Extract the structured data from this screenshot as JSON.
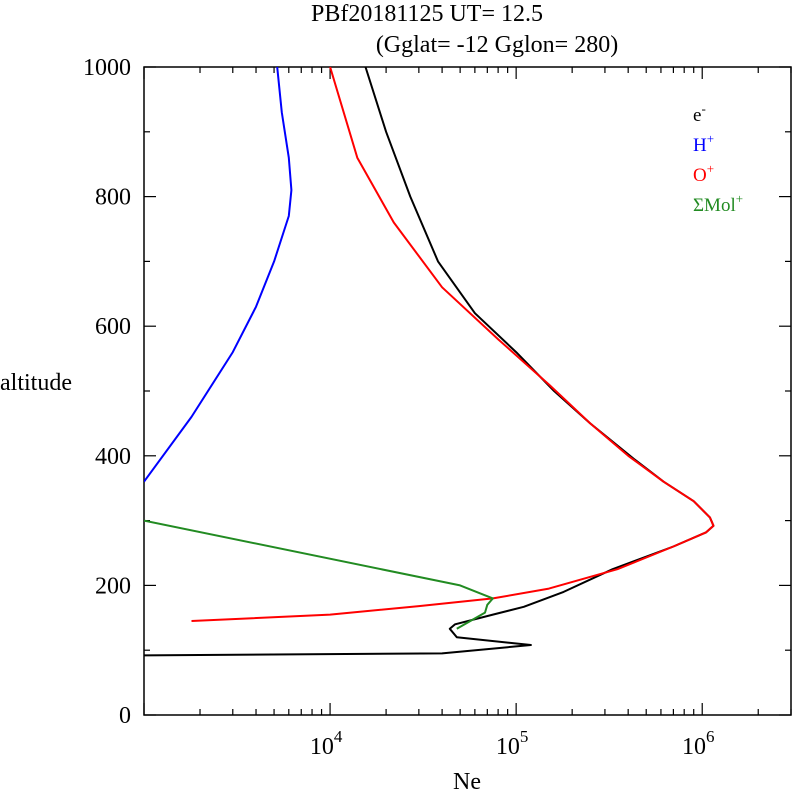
{
  "chart_data": {
    "type": "line",
    "title_line1": "PBf20181125   UT=  12.5",
    "title_line2": "(Gglat= -12   Gglon=  280)",
    "xlabel": "Ne",
    "ylabel": "altitude",
    "x_scale": "log",
    "xlim": [
      1000,
      3000000
    ],
    "ylim": [
      0,
      1000
    ],
    "y_ticks": [
      "0",
      "200",
      "400",
      "600",
      "800",
      "1000"
    ],
    "y_tick_values": [
      0,
      200,
      400,
      600,
      800,
      1000
    ],
    "x_ticks": [
      {
        "value": 10000,
        "base": "10",
        "exp": "4"
      },
      {
        "value": 100000,
        "base": "10",
        "exp": "5"
      },
      {
        "value": 1000000,
        "base": "10",
        "exp": "6"
      }
    ],
    "grid": false,
    "legend_position": "top-right",
    "series": [
      {
        "name": "e",
        "sup": "-",
        "color": "#000000",
        "points": [
          [
            1000,
            92
          ],
          [
            40000,
            95
          ],
          [
            120000,
            108
          ],
          [
            48000,
            120
          ],
          [
            44000,
            133
          ],
          [
            47000,
            140
          ],
          [
            75000,
            155
          ],
          [
            110000,
            167
          ],
          [
            180000,
            190
          ],
          [
            330000,
            225
          ],
          [
            700000,
            260
          ],
          [
            1050000,
            282
          ],
          [
            1150000,
            292
          ],
          [
            1100000,
            305
          ],
          [
            900000,
            330
          ],
          [
            620000,
            360
          ],
          [
            430000,
            395
          ],
          [
            250000,
            450
          ],
          [
            160000,
            500
          ],
          [
            100000,
            560
          ],
          [
            60000,
            620
          ],
          [
            38000,
            700
          ],
          [
            27000,
            800
          ],
          [
            20000,
            900
          ],
          [
            15500,
            1000
          ]
        ]
      },
      {
        "name": "H",
        "sup": "+",
        "color": "#0000ff",
        "points": [
          [
            1000,
            360
          ],
          [
            1800,
            460
          ],
          [
            3000,
            560
          ],
          [
            4000,
            630
          ],
          [
            5000,
            700
          ],
          [
            6000,
            770
          ],
          [
            6200,
            810
          ],
          [
            6000,
            860
          ],
          [
            5500,
            930
          ],
          [
            5200,
            1000
          ]
        ]
      },
      {
        "name": "O",
        "sup": "+",
        "color": "#ff0000",
        "points": [
          [
            1800,
            145
          ],
          [
            10000,
            155
          ],
          [
            30000,
            168
          ],
          [
            75000,
            180
          ],
          [
            150000,
            195
          ],
          [
            350000,
            225
          ],
          [
            700000,
            260
          ],
          [
            1050000,
            282
          ],
          [
            1150000,
            292
          ],
          [
            1100000,
            305
          ],
          [
            900000,
            330
          ],
          [
            620000,
            360
          ],
          [
            400000,
            400
          ],
          [
            250000,
            450
          ],
          [
            150000,
            510
          ],
          [
            80000,
            580
          ],
          [
            40000,
            660
          ],
          [
            22000,
            760
          ],
          [
            14000,
            860
          ],
          [
            10000,
            1000
          ]
        ]
      },
      {
        "name": "ΣMol",
        "sup": "+",
        "color": "#228b22",
        "points": [
          [
            48000,
            133
          ],
          [
            68000,
            158
          ],
          [
            70000,
            170
          ],
          [
            75000,
            180
          ],
          [
            50000,
            200
          ],
          [
            1000,
            300
          ]
        ]
      }
    ]
  }
}
